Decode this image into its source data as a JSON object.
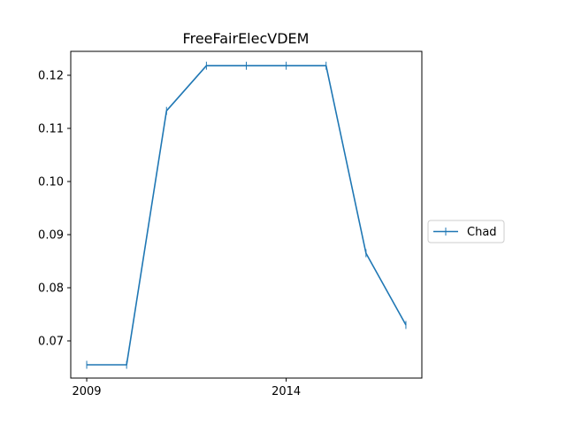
{
  "chart_data": {
    "type": "line",
    "title": "FreeFairElecVDEM",
    "xlabel": "",
    "ylabel": "",
    "x": [
      2009,
      2010,
      2011,
      2012,
      2013,
      2014,
      2015,
      2016,
      2017
    ],
    "series": [
      {
        "name": "Chad",
        "color": "#1f77b4",
        "marker": "vertical-tick",
        "values": [
          0.0655,
          0.0655,
          0.1133,
          0.1218,
          0.1218,
          0.1218,
          0.1218,
          0.0865,
          0.073
        ]
      }
    ],
    "xlim": [
      2008.6,
      2017.4
    ],
    "ylim": [
      0.063,
      0.1245
    ],
    "x_ticks": [
      2009,
      2014
    ],
    "x_tick_labels": [
      "2009",
      "2014"
    ],
    "y_ticks": [
      0.07,
      0.08,
      0.09,
      0.1,
      0.11,
      0.12
    ],
    "y_tick_labels": [
      "0.07",
      "0.08",
      "0.09",
      "0.10",
      "0.11",
      "0.12"
    ],
    "grid": false,
    "legend_position": "right-outside"
  }
}
